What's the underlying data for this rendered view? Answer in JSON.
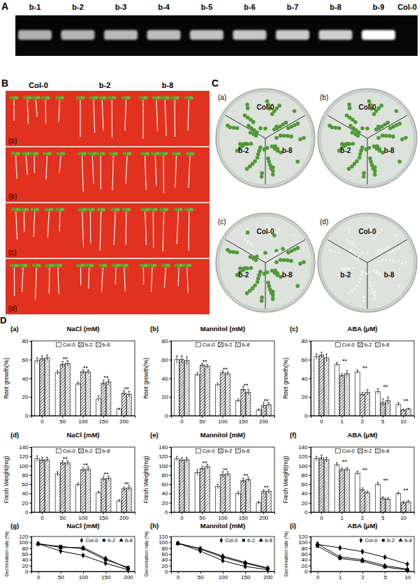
{
  "panels": {
    "A": {
      "label": "A",
      "lanes": [
        "b-1",
        "b-2",
        "b-3",
        "b-4",
        "b-5",
        "b-6",
        "b-7",
        "b-8",
        "b-9",
        "Col-0"
      ]
    },
    "B": {
      "label": "B",
      "columns": [
        "Col-0",
        "b-2",
        "b-8"
      ],
      "rows": [
        "(a)",
        "(b)",
        "(c)",
        "(d)"
      ]
    },
    "C": {
      "label": "C",
      "plates": [
        {
          "label": "(a)",
          "sections": [
            "Col-0",
            "b-2",
            "b-8"
          ]
        },
        {
          "label": "(b)",
          "sections": [
            "Col-0",
            "b-2",
            "b-8"
          ]
        },
        {
          "label": "(c)",
          "sections": [
            "Col-0",
            "b-2",
            "b-8"
          ]
        },
        {
          "label": "(d)",
          "sections": [
            "Col-0",
            "b-2",
            "b-8"
          ]
        }
      ]
    },
    "D": {
      "label": "D"
    }
  },
  "chart_data": [
    {
      "type": "bar",
      "panel": "(a)",
      "title": "NaCl (mM)",
      "y_label": "Root growth(%)",
      "categories": [
        "0",
        "50",
        "100",
        "150",
        "200"
      ],
      "ylim": [
        0,
        80
      ],
      "yticks": [
        0,
        20,
        40,
        60,
        80
      ],
      "legend": "top",
      "series": [
        {
          "name": "Col-0",
          "color": "#ffffff",
          "values": [
            59,
            46,
            34,
            18,
            7
          ],
          "errors": [
            3,
            2,
            2,
            3,
            1
          ]
        },
        {
          "name": "b-2",
          "color": "#222222",
          "values": [
            61,
            55,
            47,
            35,
            24
          ],
          "errors": [
            3,
            3,
            2,
            3,
            3
          ]
        },
        {
          "name": "b-8",
          "color": "#777777",
          "values": [
            62,
            56,
            47,
            36,
            23
          ],
          "errors": [
            3,
            3,
            2,
            3,
            3
          ]
        }
      ],
      "annotations": [
        {
          "category": "50",
          "text": "**"
        },
        {
          "category": "100",
          "text": "**"
        },
        {
          "category": "150",
          "text": "**"
        },
        {
          "category": "200",
          "text": "**"
        }
      ]
    },
    {
      "type": "bar",
      "panel": "(b)",
      "title": "Mannitol (mM)",
      "y_label": "Root growth(%)",
      "categories": [
        "0",
        "50",
        "100",
        "150",
        "200"
      ],
      "ylim": [
        0,
        80
      ],
      "yticks": [
        0,
        20,
        40,
        60,
        80
      ],
      "legend": "top",
      "series": [
        {
          "name": "Col-0",
          "color": "#ffffff",
          "values": [
            60,
            44,
            33,
            16,
            6
          ],
          "errors": [
            4,
            2,
            2,
            2,
            1
          ]
        },
        {
          "name": "b-2",
          "color": "#222222",
          "values": [
            60,
            54,
            46,
            28,
            11
          ],
          "errors": [
            4,
            2,
            2,
            3,
            3
          ]
        },
        {
          "name": "b-8",
          "color": "#777777",
          "values": [
            59,
            53,
            45,
            25,
            12
          ],
          "errors": [
            4,
            2,
            2,
            3,
            2
          ]
        }
      ],
      "annotations": [
        {
          "category": "50",
          "text": "**"
        },
        {
          "category": "100",
          "text": "**"
        },
        {
          "category": "150",
          "text": "**"
        },
        {
          "category": "200",
          "text": "**"
        }
      ]
    },
    {
      "type": "bar",
      "panel": "(c)",
      "title": "ABA (μM)",
      "y_label": "Root growth(%)",
      "categories": [
        "0",
        "1",
        "2",
        "5",
        "10"
      ],
      "ylim": [
        0,
        80
      ],
      "yticks": [
        0,
        20,
        40,
        60,
        80
      ],
      "legend": "top",
      "series": [
        {
          "name": "Col-0",
          "color": "#ffffff",
          "values": [
            63,
            55,
            47,
            26,
            12
          ],
          "errors": [
            3,
            2,
            2,
            3,
            2
          ]
        },
        {
          "name": "b-2",
          "color": "#222222",
          "values": [
            65,
            43,
            23,
            14,
            6
          ],
          "errors": [
            3,
            2,
            2,
            4,
            1
          ]
        },
        {
          "name": "b-8",
          "color": "#777777",
          "values": [
            62,
            45,
            25,
            16,
            7
          ],
          "errors": [
            4,
            3,
            3,
            4,
            1
          ]
        }
      ],
      "annotations": [
        {
          "category": "1",
          "text": "**"
        },
        {
          "category": "2",
          "text": "**"
        },
        {
          "category": "5",
          "text": "**"
        },
        {
          "category": "10",
          "text": "**"
        }
      ]
    },
    {
      "type": "bar",
      "panel": "(d)",
      "title": "NaCl (mM)",
      "y_label": "Fresh Weight(mg)",
      "categories": [
        "0",
        "50",
        "100",
        "150",
        "200"
      ],
      "ylim": [
        0,
        140
      ],
      "yticks": [
        0,
        20,
        40,
        60,
        80,
        100,
        120,
        140
      ],
      "legend": "top",
      "series": [
        {
          "name": "Col-0",
          "color": "#ffffff",
          "values": [
            115,
            82,
            59,
            42,
            24
          ],
          "errors": [
            6,
            5,
            4,
            3,
            3
          ]
        },
        {
          "name": "b-2",
          "color": "#222222",
          "values": [
            112,
            106,
            91,
            72,
            50
          ],
          "errors": [
            6,
            5,
            5,
            5,
            4
          ]
        },
        {
          "name": "b-8",
          "color": "#777777",
          "values": [
            113,
            106,
            93,
            73,
            52
          ],
          "errors": [
            5,
            5,
            5,
            5,
            5
          ]
        }
      ],
      "annotations": [
        {
          "category": "50",
          "text": "**"
        },
        {
          "category": "100",
          "text": "**"
        },
        {
          "category": "150",
          "text": "**"
        },
        {
          "category": "200",
          "text": "**"
        }
      ]
    },
    {
      "type": "bar",
      "panel": "(e)",
      "title": "Mannitol (mM)",
      "y_label": "Fresh Weight(mg)",
      "categories": [
        "0",
        "50",
        "100",
        "150",
        "200"
      ],
      "ylim": [
        0,
        140
      ],
      "yticks": [
        0,
        20,
        40,
        60,
        80,
        100,
        120,
        140
      ],
      "legend": "top",
      "series": [
        {
          "name": "Col-0",
          "color": "#ffffff",
          "values": [
            115,
            85,
            55,
            40,
            20
          ],
          "errors": [
            5,
            6,
            5,
            4,
            3
          ]
        },
        {
          "name": "b-2",
          "color": "#222222",
          "values": [
            112,
            94,
            81,
            68,
            44
          ],
          "errors": [
            5,
            5,
            6,
            5,
            4
          ]
        },
        {
          "name": "b-8",
          "color": "#777777",
          "values": [
            113,
            98,
            82,
            70,
            45
          ],
          "errors": [
            5,
            5,
            5,
            5,
            4
          ]
        }
      ],
      "annotations": [
        {
          "category": "50",
          "text": "**"
        },
        {
          "category": "100",
          "text": "**"
        },
        {
          "category": "150",
          "text": "**"
        },
        {
          "category": "200",
          "text": "**"
        }
      ]
    },
    {
      "type": "bar",
      "panel": "(f)",
      "title": "ABA (μM)",
      "y_label": "Fresh Weight(mg)",
      "categories": [
        "0",
        "1",
        "2",
        "5",
        "10"
      ],
      "ylim": [
        0,
        140
      ],
      "yticks": [
        0,
        20,
        40,
        60,
        80,
        100,
        120,
        140
      ],
      "legend": "top",
      "series": [
        {
          "name": "Col-0",
          "color": "#ffffff",
          "values": [
            115,
            102,
            84,
            60,
            40
          ],
          "errors": [
            5,
            4,
            4,
            4,
            3
          ]
        },
        {
          "name": "b-2",
          "color": "#222222",
          "values": [
            117,
            91,
            48,
            30,
            20
          ],
          "errors": [
            6,
            4,
            4,
            3,
            3
          ]
        },
        {
          "name": "b-8",
          "color": "#777777",
          "values": [
            113,
            92,
            42,
            28,
            22
          ],
          "errors": [
            5,
            4,
            3,
            3,
            3
          ]
        }
      ],
      "annotations": [
        {
          "category": "1",
          "text": "**"
        },
        {
          "category": "2",
          "text": "**"
        },
        {
          "category": "5",
          "text": "**"
        },
        {
          "category": "10",
          "text": "**"
        }
      ]
    },
    {
      "type": "line",
      "panel": "(g)",
      "title": "NaCl (mM)",
      "y_label": "Germination rate (%)",
      "categories": [
        "0",
        "50",
        "100",
        "150",
        "200"
      ],
      "ylim": [
        0,
        120
      ],
      "yticks": [
        0,
        20,
        40,
        60,
        80,
        100,
        120
      ],
      "legend": "top-right",
      "series": [
        {
          "name": "Col-0",
          "color": "#000000",
          "marker": "diamond",
          "values": [
            95,
            70,
            55,
            28,
            6
          ],
          "errors": [
            2,
            3,
            3,
            2,
            1
          ]
        },
        {
          "name": "b-2",
          "color": "#000000",
          "marker": "square",
          "values": [
            94,
            86,
            78,
            40,
            14
          ],
          "errors": [
            2,
            3,
            3,
            3,
            2
          ]
        },
        {
          "name": "b-8",
          "color": "#000000",
          "marker": "triangle",
          "values": [
            96,
            82,
            82,
            45,
            10
          ],
          "errors": [
            2,
            3,
            3,
            3,
            2
          ]
        }
      ]
    },
    {
      "type": "line",
      "panel": "(h)",
      "title": "Mannitol (mM)",
      "y_label": "Germination rate (%)",
      "categories": [
        "0",
        "50",
        "100",
        "150",
        "200"
      ],
      "ylim": [
        0,
        120
      ],
      "yticks": [
        0,
        20,
        40,
        60,
        80,
        100,
        120
      ],
      "legend": "top-right",
      "series": [
        {
          "name": "Col-0",
          "color": "#000000",
          "marker": "diamond",
          "values": [
            97,
            70,
            37,
            17,
            6
          ],
          "errors": [
            2,
            2,
            2,
            2,
            1
          ]
        },
        {
          "name": "b-2",
          "color": "#000000",
          "marker": "square",
          "values": [
            97,
            77,
            49,
            28,
            10
          ],
          "errors": [
            2,
            2,
            2,
            2,
            1
          ]
        },
        {
          "name": "b-8",
          "color": "#000000",
          "marker": "triangle",
          "values": [
            96,
            79,
            53,
            31,
            12
          ],
          "errors": [
            2,
            2,
            2,
            2,
            1
          ]
        }
      ]
    },
    {
      "type": "line",
      "panel": "(i)",
      "title": "ABA (μM)",
      "y_label": "Germination rate (%)",
      "categories": [
        "0",
        "1",
        "2",
        "5",
        "10"
      ],
      "ylim": [
        0,
        120
      ],
      "yticks": [
        0,
        20,
        40,
        60,
        80,
        100,
        120
      ],
      "legend": "top-right",
      "series": [
        {
          "name": "Col-0",
          "color": "#000000",
          "marker": "diamond",
          "values": [
            93,
            81,
            68,
            49,
            25
          ],
          "errors": [
            4,
            5,
            5,
            3,
            2
          ]
        },
        {
          "name": "b-2",
          "color": "#000000",
          "marker": "square",
          "values": [
            87,
            45,
            35,
            15,
            5
          ],
          "errors": [
            4,
            4,
            3,
            2,
            1
          ]
        },
        {
          "name": "b-8",
          "color": "#000000",
          "marker": "triangle",
          "values": [
            95,
            50,
            40,
            20,
            8
          ],
          "errors": [
            4,
            5,
            4,
            3,
            2
          ]
        }
      ]
    }
  ]
}
